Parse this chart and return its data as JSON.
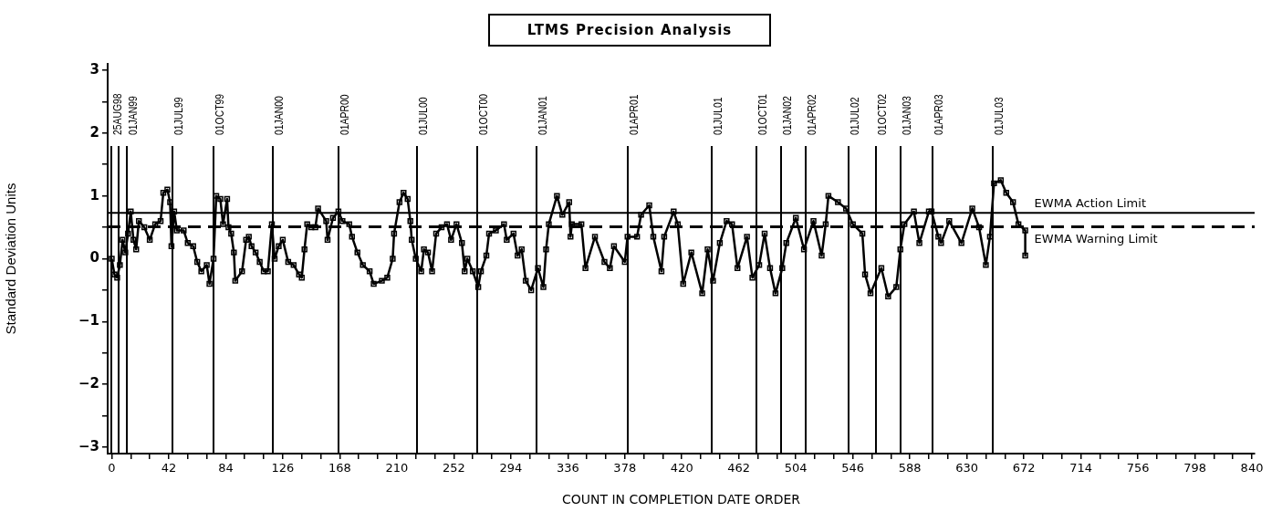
{
  "chart_data": {
    "type": "line",
    "title": "LTMS Precision Analysis",
    "xlabel": "COUNT IN COMPLETION DATE ORDER",
    "ylabel": "Standard Deviation Units",
    "xlim": [
      -3,
      842
    ],
    "ylim": [
      -3.1,
      3.1
    ],
    "xticks": [
      0,
      {
        "value": 14,
        "label": null
      },
      {
        "value": 28,
        "label": null
      },
      42,
      {
        "value": 56,
        "label": null
      },
      {
        "value": 70,
        "label": null
      },
      84,
      {
        "value": 98,
        "label": null
      },
      {
        "value": 112,
        "label": null
      },
      126,
      {
        "value": 140,
        "label": null
      },
      {
        "value": 154,
        "label": null
      },
      168,
      {
        "value": 182,
        "label": null
      },
      {
        "value": 196,
        "label": null
      },
      210,
      {
        "value": 224,
        "label": null
      },
      {
        "value": 238,
        "label": null
      },
      252,
      {
        "value": 266,
        "label": null
      },
      {
        "value": 280,
        "label": null
      },
      294,
      {
        "value": 308,
        "label": null
      },
      {
        "value": 322,
        "label": null
      },
      336,
      {
        "value": 350,
        "label": null
      },
      {
        "value": 364,
        "label": null
      },
      378,
      {
        "value": 392,
        "label": null
      },
      {
        "value": 406,
        "label": null
      },
      420,
      {
        "value": 434,
        "label": null
      },
      {
        "value": 448,
        "label": null
      },
      462,
      {
        "value": 476,
        "label": null
      },
      {
        "value": 490,
        "label": null
      },
      504,
      {
        "value": 518,
        "label": null
      },
      {
        "value": 532,
        "label": null
      },
      546,
      {
        "value": 560,
        "label": null
      },
      {
        "value": 574,
        "label": null
      },
      588,
      {
        "value": 602,
        "label": null
      },
      {
        "value": 616,
        "label": null
      },
      630,
      {
        "value": 644,
        "label": null
      },
      {
        "value": 658,
        "label": null
      },
      672,
      {
        "value": 686,
        "label": null
      },
      {
        "value": 700,
        "label": null
      },
      714,
      {
        "value": 728,
        "label": null
      },
      {
        "value": 742,
        "label": null
      },
      756,
      {
        "value": 770,
        "label": null
      },
      {
        "value": 784,
        "label": null
      },
      798,
      {
        "value": 812,
        "label": null
      },
      {
        "value": 826,
        "label": null
      },
      840
    ],
    "yticks": [
      {
        "value": -3,
        "label": "−3"
      },
      {
        "value": -2.5,
        "label": null
      },
      {
        "value": -2,
        "label": "−2"
      },
      {
        "value": -1.5,
        "label": null
      },
      {
        "value": -1,
        "label": "−1"
      },
      {
        "value": -0.5,
        "label": null
      },
      0,
      {
        "value": 0.5,
        "label": null
      },
      1,
      {
        "value": 1.5,
        "label": null
      },
      2,
      {
        "value": 2.5,
        "label": null
      },
      3
    ],
    "grid": false,
    "legend": false,
    "marker": "square",
    "line_style": "solid",
    "series": [
      {
        "color": "#000000",
        "x": [
          0,
          2,
          4,
          6,
          8,
          10,
          12,
          14,
          16,
          18,
          20,
          24,
          28,
          32,
          36,
          38,
          41,
          43,
          44,
          46,
          48,
          53,
          56,
          60,
          63,
          66,
          70,
          72,
          75,
          77,
          80,
          82,
          85,
          86,
          88,
          90,
          91,
          96,
          99,
          101,
          103,
          106,
          109,
          112,
          115,
          118,
          120,
          123,
          126,
          130,
          134,
          138,
          140,
          142,
          144,
          147,
          150,
          152,
          158,
          159,
          163,
          167,
          170,
          175,
          177,
          181,
          185,
          190,
          193,
          199,
          203,
          207,
          208,
          212,
          215,
          218,
          220,
          221,
          224,
          228,
          230,
          233,
          236,
          239,
          243,
          247,
          250,
          254,
          258,
          260,
          262,
          266,
          270,
          272,
          276,
          278,
          283,
          289,
          291,
          296,
          299,
          302,
          305,
          309,
          314,
          318,
          320,
          322,
          328,
          332,
          337,
          338,
          339,
          346,
          349,
          356,
          363,
          367,
          370,
          378,
          380,
          387,
          390,
          396,
          399,
          405,
          407,
          414,
          417,
          421,
          427,
          435,
          439,
          443,
          448,
          453,
          457,
          461,
          468,
          472,
          477,
          481,
          485,
          489,
          494,
          497,
          504,
          510,
          517,
          523,
          526,
          528,
          535,
          541,
          546,
          553,
          555,
          559,
          567,
          572,
          578,
          581,
          584,
          591,
          595,
          602,
          604,
          609,
          611,
          617,
          626,
          634,
          639,
          644,
          647,
          650,
          655,
          659,
          664,
          668,
          673,
          673
        ],
        "values": [
          0,
          -0.25,
          -0.3,
          -0.1,
          0.3,
          0.1,
          0.4,
          0.75,
          0.3,
          0.15,
          0.6,
          0.5,
          0.3,
          0.55,
          0.6,
          1.05,
          1.1,
          0.9,
          0.2,
          0.75,
          0.45,
          0.45,
          0.25,
          0.2,
          -0.05,
          -0.2,
          -0.1,
          -0.4,
          0,
          1.0,
          0.95,
          0.55,
          0.95,
          0.5,
          0.4,
          0.1,
          -0.35,
          -0.2,
          0.3,
          0.35,
          0.2,
          0.1,
          -0.05,
          -0.2,
          -0.2,
          0.55,
          0,
          0.2,
          0.3,
          -0.05,
          -0.1,
          -0.25,
          -0.3,
          0.15,
          0.55,
          0.5,
          0.5,
          0.8,
          0.6,
          0.3,
          0.65,
          0.75,
          0.6,
          0.55,
          0.35,
          0.1,
          -0.1,
          -0.2,
          -0.4,
          -0.35,
          -0.3,
          0,
          0.4,
          0.9,
          1.05,
          0.95,
          0.6,
          0.3,
          0,
          -0.2,
          0.15,
          0.1,
          -0.2,
          0.4,
          0.5,
          0.55,
          0.3,
          0.55,
          0.25,
          -0.2,
          0,
          -0.2,
          -0.45,
          -0.2,
          0.05,
          0.4,
          0.45,
          0.55,
          0.3,
          0.4,
          0.05,
          0.15,
          -0.35,
          -0.5,
          -0.15,
          -0.45,
          0.15,
          0.55,
          1.0,
          0.7,
          0.9,
          0.35,
          0.55,
          0.55,
          -0.15,
          0.35,
          -0.05,
          -0.15,
          0.2,
          -0.05,
          0.35,
          0.35,
          0.7,
          0.85,
          0.35,
          -0.2,
          0.35,
          0.75,
          0.55,
          -0.4,
          0.1,
          -0.55,
          0.15,
          -0.35,
          0.25,
          0.6,
          0.55,
          -0.15,
          0.35,
          -0.3,
          -0.1,
          0.4,
          -0.15,
          -0.55,
          -0.15,
          0.25,
          0.65,
          0.15,
          0.6,
          0.05,
          0.55,
          1.0,
          0.9,
          0.8,
          0.55,
          0.4,
          -0.25,
          -0.55,
          -0.15,
          -0.6,
          -0.45,
          0.15,
          0.55,
          0.75,
          0.25,
          0.75,
          0.75,
          0.35,
          0.25,
          0.6,
          0.25,
          0.8,
          0.5,
          -0.1,
          0.35,
          1.2,
          1.25,
          1.05,
          0.9,
          0.55,
          0.45,
          0.05
        ]
      }
    ],
    "ref_lines": [
      {
        "axis": "y",
        "value": 0.73,
        "label": "EWMA Action Limit",
        "line_style": "solid"
      },
      {
        "axis": "y",
        "value": 0.51,
        "label": "EWMA Warning Limit",
        "line_style": "dashed"
      },
      {
        "axis": "x",
        "value": 0,
        "label": "25AUG98"
      },
      {
        "axis": "x",
        "value": 5
      },
      {
        "axis": "x",
        "value": 11,
        "label": "01JAN99"
      },
      {
        "axis": "x",
        "value": 45,
        "label": "01JUL99"
      },
      {
        "axis": "x",
        "value": 75,
        "label": "01OCT99"
      },
      {
        "axis": "x",
        "value": 119,
        "label": "01JAN00"
      },
      {
        "axis": "x",
        "value": 167,
        "label": "01APR00"
      },
      {
        "axis": "x",
        "value": 225,
        "label": "01JUL00"
      },
      {
        "axis": "x",
        "value": 269,
        "label": "01OCT00"
      },
      {
        "axis": "x",
        "value": 313,
        "label": "01JAN01"
      },
      {
        "axis": "x",
        "value": 380,
        "label": "01APR01"
      },
      {
        "axis": "x",
        "value": 442,
        "label": "01JUL01"
      },
      {
        "axis": "x",
        "value": 475,
        "label": "01OCT01"
      },
      {
        "axis": "x",
        "value": 493,
        "label": "01JAN02"
      },
      {
        "axis": "x",
        "value": 511,
        "label": "01APR02"
      },
      {
        "axis": "x",
        "value": 543,
        "label": "01JUL02"
      },
      {
        "axis": "x",
        "value": 563,
        "label": "01OCT02"
      },
      {
        "axis": "x",
        "value": 581,
        "label": "01JAN03"
      },
      {
        "axis": "x",
        "value": 605,
        "label": "01APR03"
      },
      {
        "axis": "x",
        "value": 649,
        "label": "01JUL03"
      }
    ]
  }
}
